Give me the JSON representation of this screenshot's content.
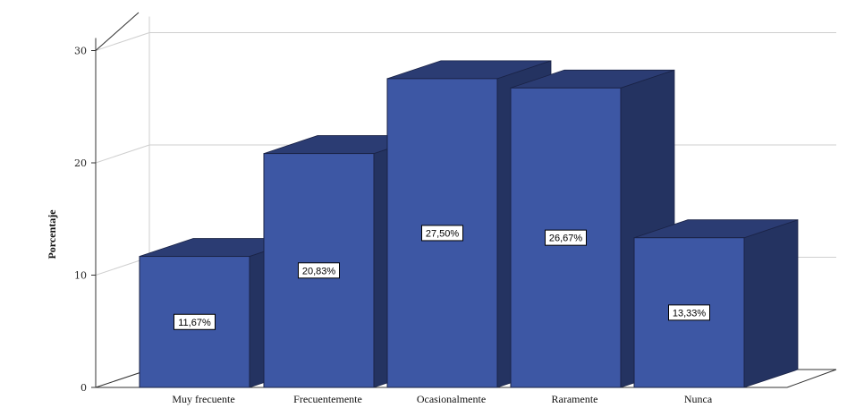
{
  "chart_data": {
    "type": "bar",
    "title": "",
    "xlabel": "",
    "ylabel": "Porcentaje",
    "categories": [
      "Muy frecuente",
      "Frecuentemente",
      "Ocasionalmente",
      "Raramente",
      "Nunca"
    ],
    "values": [
      11.67,
      20.83,
      27.5,
      26.67,
      13.33
    ],
    "data_labels": [
      "11,67%",
      "20,83%",
      "27,50%",
      "26,67%",
      "13,33%"
    ],
    "ylim": [
      0,
      30
    ],
    "yticks": [
      0,
      10,
      20,
      30
    ],
    "grid": true,
    "style": "3d",
    "colors": {
      "bar_front": "#3d57a4",
      "bar_side": "#243361",
      "bar_top": "#2b3c73",
      "grid": "#cfcfcf",
      "axis": "#333333"
    }
  }
}
